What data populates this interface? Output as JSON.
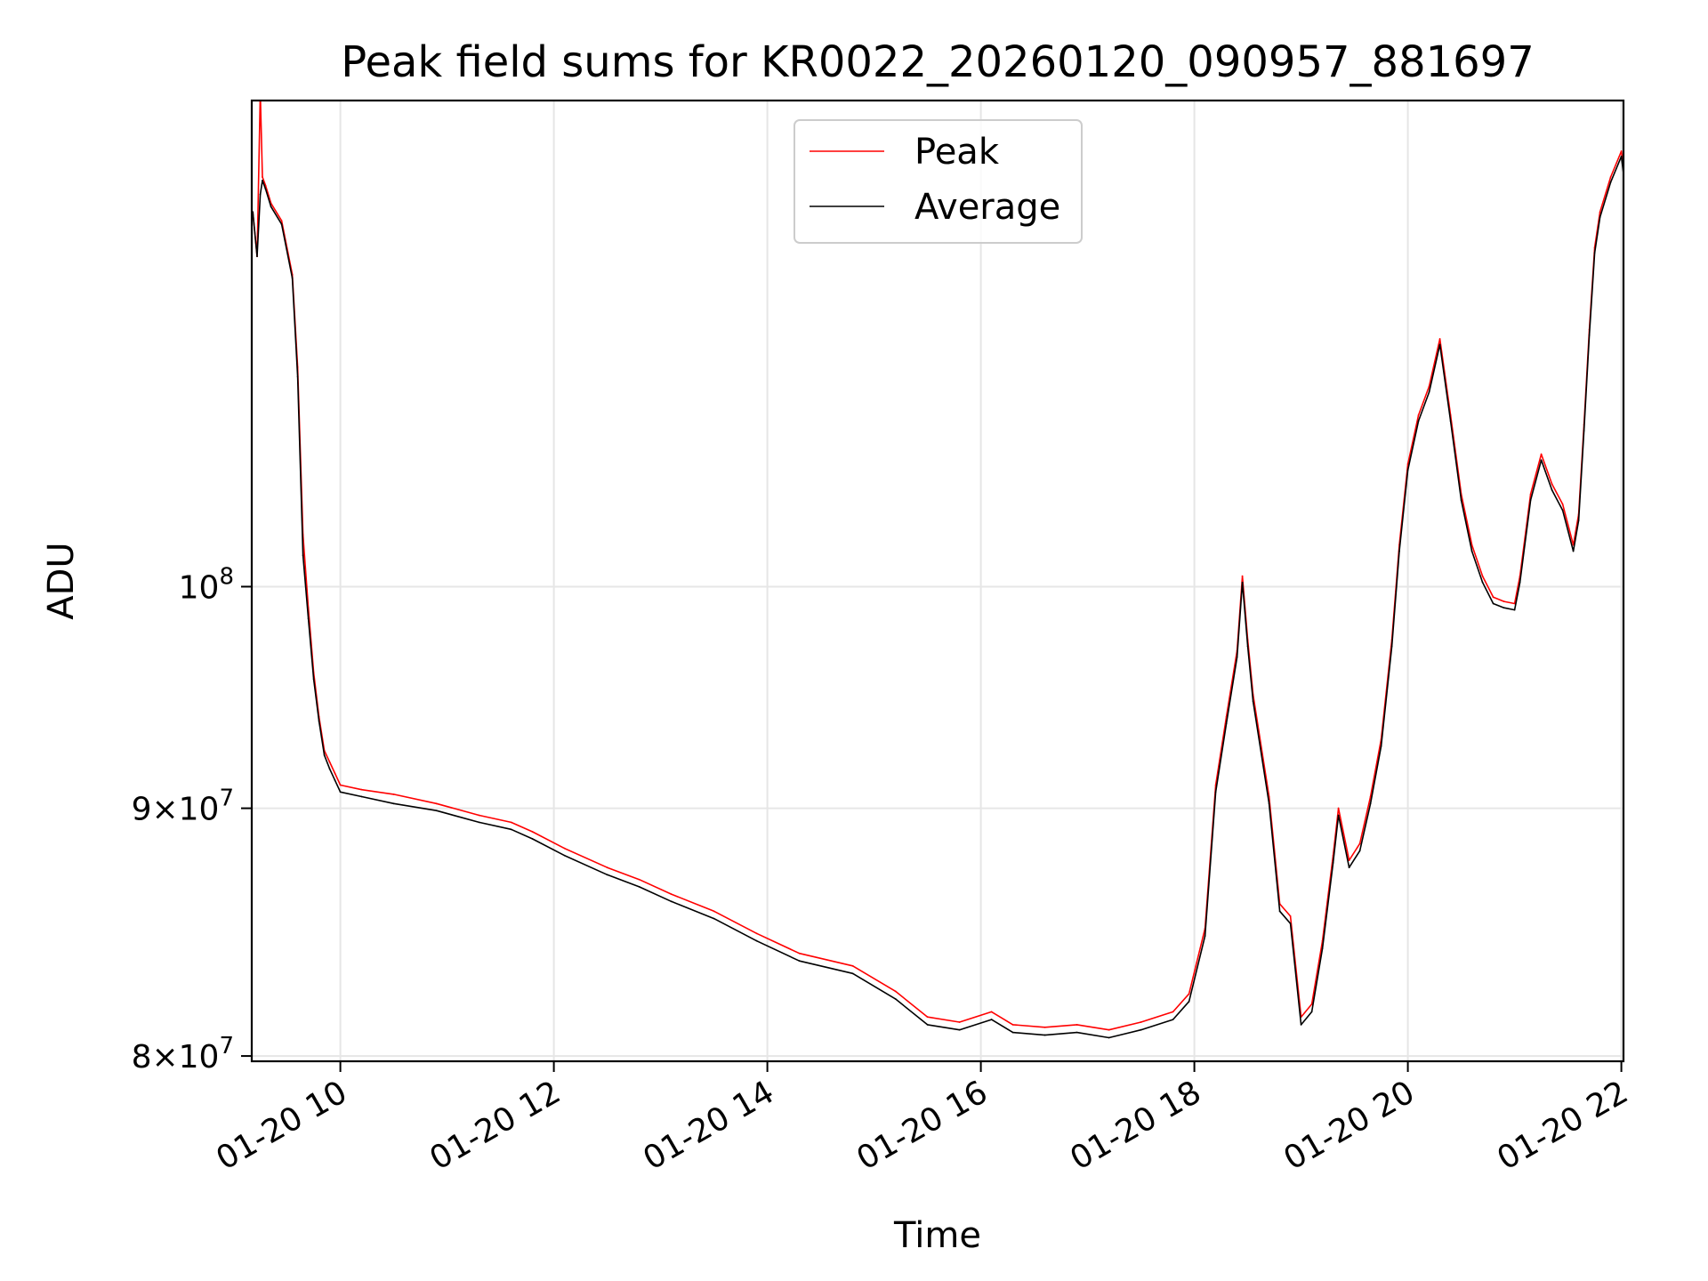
{
  "chart_data": {
    "type": "line",
    "title": "Peak field sums for KR0022_20260120_090957_881697",
    "xlabel": "Time",
    "ylabel": "ADU",
    "yscale": "log",
    "xlim": [
      9.17,
      22.02
    ],
    "ylim": [
      79800000,
      126000000
    ],
    "grid": true,
    "legend_position": "top-center",
    "x_ticks": [
      {
        "value": 10,
        "label": "01-20 10"
      },
      {
        "value": 12,
        "label": "01-20 12"
      },
      {
        "value": 14,
        "label": "01-20 14"
      },
      {
        "value": 16,
        "label": "01-20 16"
      },
      {
        "value": 18,
        "label": "01-20 18"
      },
      {
        "value": 20,
        "label": "01-20 20"
      },
      {
        "value": 22,
        "label": "01-20 22"
      }
    ],
    "y_ticks": [
      {
        "value": 80000000,
        "base": "8",
        "exp": "7"
      },
      {
        "value": 90000000,
        "base": "9",
        "exp": "7"
      },
      {
        "value": 100000000,
        "base": "10",
        "exp": "8"
      }
    ],
    "series": [
      {
        "name": "Peak",
        "color": "#ff0000",
        "x": [
          9.18,
          9.22,
          9.25,
          9.27,
          9.3,
          9.35,
          9.45,
          9.55,
          9.6,
          9.65,
          9.7,
          9.75,
          9.8,
          9.85,
          9.9,
          9.95,
          10.0,
          10.2,
          10.5,
          10.9,
          11.3,
          11.6,
          11.8,
          12.1,
          12.5,
          12.8,
          13.1,
          13.5,
          13.9,
          14.3,
          14.8,
          15.2,
          15.5,
          15.8,
          16.1,
          16.3,
          16.6,
          16.9,
          17.2,
          17.5,
          17.8,
          17.95,
          18.1,
          18.2,
          18.3,
          18.4,
          18.45,
          18.5,
          18.55,
          18.7,
          18.8,
          18.9,
          19.0,
          19.1,
          19.2,
          19.3,
          19.35,
          19.45,
          19.55,
          19.65,
          19.75,
          19.85,
          19.92,
          20.0,
          20.1,
          20.2,
          20.3,
          20.4,
          20.5,
          20.6,
          20.7,
          20.8,
          20.9,
          21.0,
          21.05,
          21.15,
          21.25,
          21.35,
          21.45,
          21.55,
          21.6,
          21.65,
          21.7,
          21.75,
          21.8,
          21.9,
          22.0,
          22.02
        ],
        "values": [
          119500000,
          117000000,
          126500000,
          121500000,
          121000000,
          120000000,
          119000000,
          116000000,
          111000000,
          102500000,
          99000000,
          96000000,
          94000000,
          92500000,
          92000000,
          91500000,
          91000000,
          90800000,
          90600000,
          90200000,
          89700000,
          89400000,
          89000000,
          88300000,
          87500000,
          87000000,
          86400000,
          85700000,
          84800000,
          84000000,
          83500000,
          82500000,
          81500000,
          81300000,
          81700000,
          81200000,
          81100000,
          81200000,
          81000000,
          81300000,
          81700000,
          82400000,
          85000000,
          91000000,
          94000000,
          97000000,
          100500000,
          97500000,
          95000000,
          90500000,
          86000000,
          85500000,
          81500000,
          82000000,
          84500000,
          88000000,
          90000000,
          87800000,
          88500000,
          90500000,
          93000000,
          97500000,
          102000000,
          106000000,
          108500000,
          110000000,
          112500000,
          108500000,
          104500000,
          102000000,
          100500000,
          99500000,
          99300000,
          99200000,
          100500000,
          104500000,
          106500000,
          105000000,
          104000000,
          102000000,
          103500000,
          108000000,
          113000000,
          117500000,
          119500000,
          121500000,
          123000000,
          122000000
        ]
      },
      {
        "name": "Average",
        "color": "#000000",
        "x": [
          9.18,
          9.22,
          9.25,
          9.27,
          9.3,
          9.35,
          9.45,
          9.55,
          9.6,
          9.65,
          9.7,
          9.75,
          9.8,
          9.85,
          9.9,
          9.95,
          10.0,
          10.2,
          10.5,
          10.9,
          11.3,
          11.6,
          11.8,
          12.1,
          12.5,
          12.8,
          13.1,
          13.5,
          13.9,
          14.3,
          14.8,
          15.2,
          15.5,
          15.8,
          16.1,
          16.3,
          16.6,
          16.9,
          17.2,
          17.5,
          17.8,
          17.95,
          18.1,
          18.2,
          18.3,
          18.4,
          18.45,
          18.5,
          18.55,
          18.7,
          18.8,
          18.9,
          19.0,
          19.1,
          19.2,
          19.3,
          19.35,
          19.45,
          19.55,
          19.65,
          19.75,
          19.85,
          19.92,
          20.0,
          20.1,
          20.2,
          20.3,
          20.4,
          20.5,
          20.6,
          20.7,
          20.8,
          20.9,
          21.0,
          21.05,
          21.15,
          21.25,
          21.35,
          21.45,
          21.55,
          21.6,
          21.65,
          21.7,
          21.75,
          21.8,
          21.9,
          22.0,
          22.02
        ],
        "values": [
          119500000,
          117000000,
          120500000,
          121300000,
          120800000,
          119800000,
          118800000,
          115800000,
          110500000,
          101500000,
          98500000,
          95700000,
          93800000,
          92300000,
          91700000,
          91200000,
          90700000,
          90500000,
          90200000,
          89900000,
          89400000,
          89100000,
          88700000,
          88000000,
          87200000,
          86700000,
          86100000,
          85400000,
          84500000,
          83700000,
          83200000,
          82200000,
          81200000,
          81000000,
          81400000,
          80900000,
          80800000,
          80900000,
          80700000,
          81000000,
          81400000,
          82100000,
          84700000,
          90700000,
          93700000,
          96700000,
          100200000,
          97200000,
          94700000,
          90200000,
          85700000,
          85200000,
          81200000,
          81700000,
          84200000,
          87700000,
          89700000,
          87500000,
          88200000,
          90200000,
          92700000,
          97200000,
          101700000,
          105700000,
          108200000,
          109700000,
          112200000,
          108200000,
          104200000,
          101700000,
          100200000,
          99200000,
          99000000,
          98900000,
          100200000,
          104200000,
          106200000,
          104700000,
          103700000,
          101700000,
          103200000,
          107700000,
          112700000,
          117200000,
          119200000,
          121200000,
          122700000,
          121700000
        ]
      }
    ]
  }
}
